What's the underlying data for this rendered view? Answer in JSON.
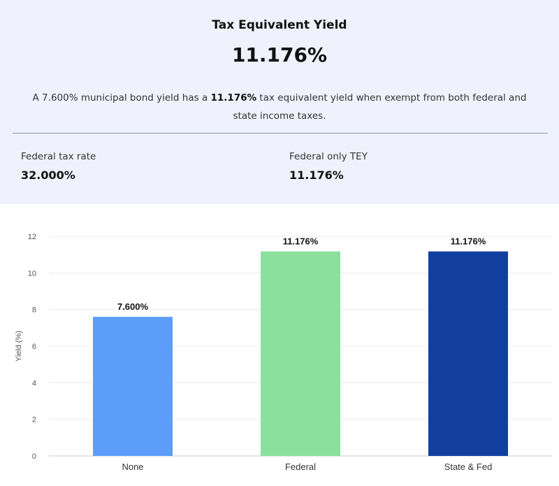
{
  "summary": {
    "title": "Tax Equivalent Yield",
    "big_value": "11.176%",
    "description": {
      "prefix": "A 7.600% municipal bond yield has a ",
      "highlight": "11.176%",
      "suffix": " tax equivalent yield when exempt from both federal and state income taxes."
    },
    "metrics": [
      {
        "label": "Federal tax rate",
        "value": "32.000%"
      },
      {
        "label": "Federal only TEY",
        "value": "11.176%"
      }
    ]
  },
  "chart_data": {
    "type": "bar",
    "categories": [
      "None",
      "Federal",
      "State & Fed"
    ],
    "values": [
      7.6,
      11.176,
      11.176
    ],
    "data_labels": [
      "7.600%",
      "11.176%",
      "11.176%"
    ],
    "colors": [
      "#5b9df9",
      "#8be09d",
      "#123ea0"
    ],
    "ylabel": "Yield (%)",
    "xlabel": "",
    "ylim": [
      0,
      12
    ],
    "yticks": [
      0,
      2,
      4,
      6,
      8,
      10,
      12
    ],
    "grid": true,
    "legend": "none"
  }
}
